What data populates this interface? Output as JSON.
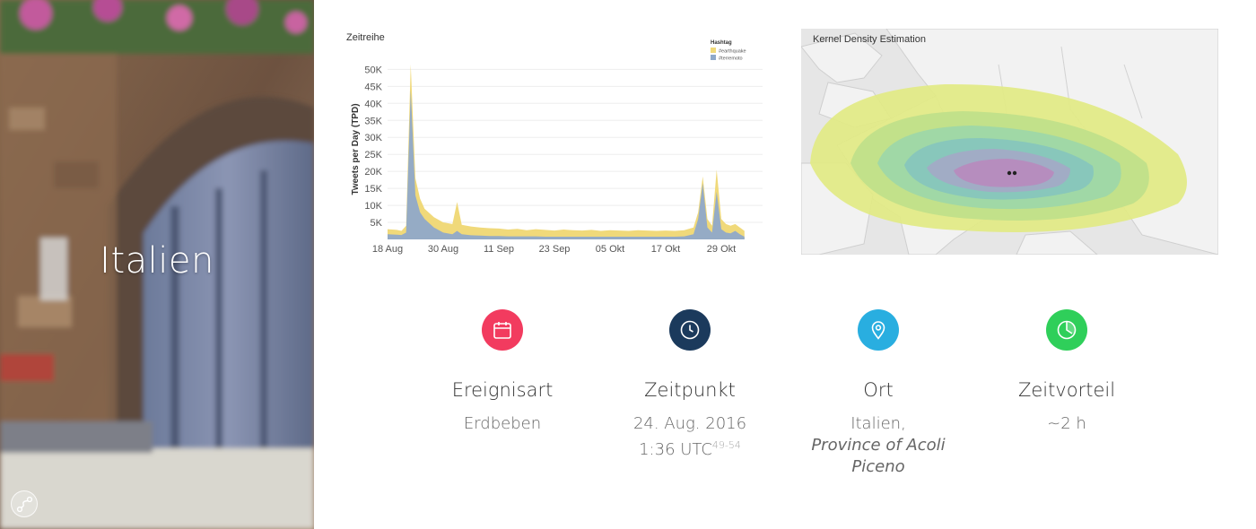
{
  "hero": {
    "title": "Italien"
  },
  "timeseries": {
    "title": "Zeitreihe",
    "chart_data": {
      "type": "area",
      "title": "Zeitreihe",
      "xlabel": "",
      "ylabel": "Tweets per Day (TPD)",
      "ylim": [
        0,
        53000
      ],
      "yticks": [
        "5K",
        "10K",
        "15K",
        "20K",
        "25K",
        "30K",
        "35K",
        "40K",
        "45K",
        "50K"
      ],
      "ytick_values": [
        5000,
        10000,
        15000,
        20000,
        25000,
        30000,
        35000,
        40000,
        45000,
        50000
      ],
      "xticks": [
        "18 Aug",
        "30 Aug",
        "11 Sep",
        "23 Sep",
        "05 Okt",
        "17 Okt",
        "29 Okt"
      ],
      "xtick_days": [
        0,
        12,
        24,
        36,
        48,
        60,
        72
      ],
      "legend": {
        "title": "Hashtag",
        "placement": "top-right"
      },
      "series": [
        {
          "name": "#earthquake",
          "color": "#f0d97a",
          "x": [
            0,
            2,
            3,
            4,
            5,
            6,
            7,
            8,
            10,
            12,
            14,
            15,
            16,
            18,
            20,
            22,
            24,
            26,
            28,
            30,
            32,
            34,
            36,
            38,
            40,
            42,
            44,
            46,
            48,
            50,
            52,
            54,
            56,
            58,
            60,
            62,
            64,
            66,
            67,
            68,
            69,
            70,
            71,
            72,
            73,
            74,
            75,
            76,
            77
          ],
          "values": [
            3000,
            2800,
            2500,
            4000,
            51500,
            18000,
            12000,
            9000,
            6500,
            5000,
            4500,
            11000,
            4300,
            3800,
            3500,
            3300,
            3200,
            2900,
            3100,
            2700,
            3000,
            2800,
            2600,
            2900,
            2700,
            2600,
            2800,
            2500,
            2700,
            2600,
            2500,
            2700,
            2600,
            2500,
            2600,
            2500,
            2700,
            3500,
            8000,
            18500,
            6000,
            4000,
            20500,
            6000,
            4500,
            4000,
            4500,
            3500,
            2500
          ]
        },
        {
          "name": "#terremoto",
          "color": "#8fa9c9",
          "x": [
            0,
            2,
            3,
            4,
            5,
            6,
            7,
            8,
            10,
            12,
            14,
            15,
            16,
            18,
            20,
            22,
            24,
            26,
            28,
            30,
            32,
            34,
            36,
            38,
            40,
            42,
            44,
            46,
            48,
            50,
            52,
            54,
            56,
            58,
            60,
            62,
            64,
            66,
            67,
            68,
            69,
            70,
            71,
            72,
            73,
            74,
            75,
            76,
            77
          ],
          "values": [
            1500,
            1400,
            1300,
            2000,
            44000,
            13000,
            8000,
            6000,
            3500,
            2000,
            1500,
            2500,
            1500,
            1200,
            1100,
            1000,
            1000,
            900,
            900,
            900,
            900,
            800,
            800,
            800,
            800,
            800,
            800,
            800,
            800,
            800,
            800,
            800,
            800,
            800,
            800,
            800,
            900,
            1500,
            6000,
            16500,
            3500,
            2000,
            14000,
            3000,
            2000,
            1800,
            2500,
            1500,
            800
          ]
        }
      ]
    }
  },
  "kde": {
    "title": "Kernel Density Estimation"
  },
  "cards": [
    {
      "heading": "Ereignisart",
      "value": "Erdbeben",
      "icon": "calendar-icon",
      "color": "#f23b5f"
    },
    {
      "heading": "Zeitpunkt",
      "value_line1": "24. Aug. 2016",
      "value_line2": "1:36 UTC",
      "superscript": "49-54",
      "icon": "clock-icon",
      "color": "#1b3a5c"
    },
    {
      "heading": "Ort",
      "value_line1": "Italien,",
      "value_line2": "Province of Acoli",
      "value_line3": "Piceno",
      "icon": "location-pin-icon",
      "color": "#29aee0"
    },
    {
      "heading": "Zeitvorteil",
      "value": "~2 h",
      "icon": "clock-advantage-icon",
      "color": "#2fcf5a"
    }
  ]
}
